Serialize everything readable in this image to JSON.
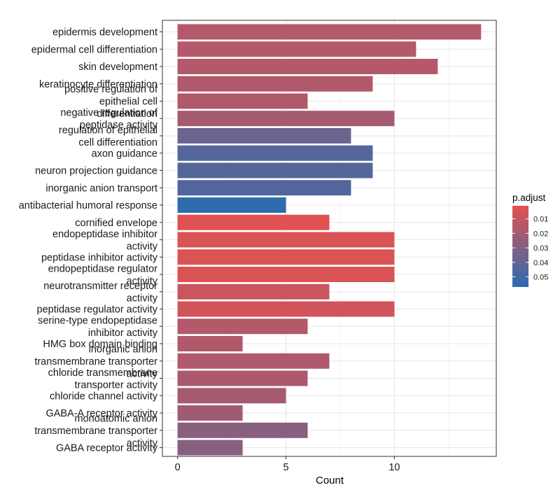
{
  "chart_data": {
    "type": "bar",
    "orientation": "horizontal",
    "xlabel": "Count",
    "ylabel": "",
    "xlim": [
      -0.7,
      14.7
    ],
    "xticks": [
      0,
      5,
      10
    ],
    "grid": true,
    "legend": {
      "title": "p.adjust",
      "placement": "right",
      "ticks": [
        0.01,
        0.02,
        0.03,
        0.04,
        0.05
      ],
      "tick_labels": [
        "0.01",
        "0.02",
        "0.03",
        "0.04",
        "0.05"
      ],
      "range": [
        0.001,
        0.057
      ],
      "low_color": "#e05252",
      "high_color": "#2b6cb0"
    },
    "categories": [
      "epidermis development",
      "epidermal cell differentiation",
      "skin development",
      "keratinocyte differentiation",
      "positive regulation of epithelial cell differentiation",
      "negative regulation of peptidase activity",
      "regulation of epithelial cell differentiation",
      "axon guidance",
      "neuron projection guidance",
      "inorganic anion transport",
      "antibacterial humoral response",
      "cornified envelope",
      "endopeptidase inhibitor activity",
      "peptidase inhibitor activity",
      "endopeptidase regulator activity",
      "neurotransmitter receptor activity",
      "peptidase regulator activity",
      "serine-type endopeptidase inhibitor activity",
      "HMG box domain binding",
      "inorganic anion transmembrane transporter activity",
      "chloride transmembrane transporter activity",
      "chloride channel activity",
      "GABA-A receptor activity",
      "monoatomic anion transmembrane transporter activity",
      "GABA receptor activity"
    ],
    "label_lines": [
      [
        "epidermis development"
      ],
      [
        "epidermal cell differentiation"
      ],
      [
        "skin development"
      ],
      [
        "keratinocyte differentiation"
      ],
      [
        "positive regulation of",
        "epithelial cell",
        "differentiation"
      ],
      [
        "negative regulation of",
        "peptidase activity"
      ],
      [
        "regulation of epithelial",
        "cell differentiation"
      ],
      [
        "axon guidance"
      ],
      [
        "neuron projection guidance"
      ],
      [
        "inorganic anion transport"
      ],
      [
        "antibacterial humoral response"
      ],
      [
        "cornified envelope"
      ],
      [
        "endopeptidase inhibitor",
        "activity"
      ],
      [
        "peptidase inhibitor activity"
      ],
      [
        "endopeptidase regulator",
        "activity"
      ],
      [
        "neurotransmitter receptor",
        "activity"
      ],
      [
        "peptidase regulator activity"
      ],
      [
        "serine-type endopeptidase",
        "inhibitor activity"
      ],
      [
        "HMG box domain binding"
      ],
      [
        "inorganic anion",
        "transmembrane transporter",
        "activity"
      ],
      [
        "chloride transmembrane",
        "transporter activity"
      ],
      [
        "chloride channel activity"
      ],
      [
        "GABA-A receptor activity"
      ],
      [
        "monoatomic anion",
        "transmembrane transporter",
        "activity"
      ],
      [
        "GABA receptor activity"
      ]
    ],
    "values": [
      14,
      11,
      12,
      9,
      6,
      10,
      8,
      9,
      9,
      8,
      5,
      7,
      10,
      10,
      10,
      7,
      10,
      6,
      3,
      7,
      6,
      5,
      3,
      6,
      3
    ],
    "p_adjust": [
      0.015,
      0.015,
      0.015,
      0.016,
      0.016,
      0.019,
      0.037,
      0.044,
      0.044,
      0.045,
      0.056,
      0.001,
      0.003,
      0.003,
      0.003,
      0.008,
      0.006,
      0.015,
      0.016,
      0.016,
      0.017,
      0.019,
      0.021,
      0.028,
      0.028
    ]
  }
}
